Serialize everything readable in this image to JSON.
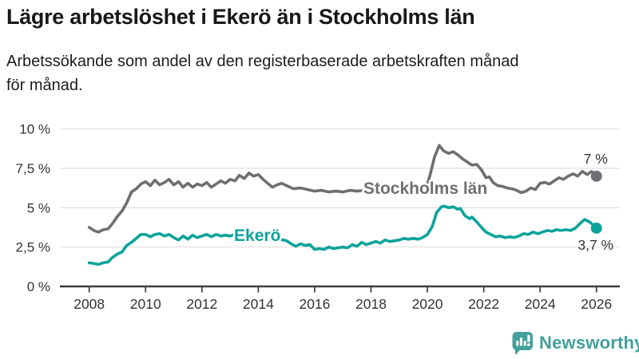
{
  "header": {
    "title": "Lägre arbetslöshet i Ekerö än i Stockholms län",
    "subtitle_lines": [
      "Arbetssökande som andel av den registerbaserade arbetskraften månad",
      "för månad."
    ]
  },
  "colors": {
    "series_stockholm": "#6e6f73",
    "series_ekero": "#0ca39a",
    "grid": "#e2e2e2",
    "axis": "#3b3b3b",
    "tick_label": "#333333",
    "value_label": "#333333",
    "brand_teal": "#43a09b"
  },
  "chart_data": {
    "type": "line",
    "title": "Lägre arbetslöshet i Ekerö än i Stockholms län",
    "xlabel": "",
    "ylabel": "Arbetssökande som andel av den registerbaserade arbetskraften",
    "x_tick_years": [
      2008,
      2010,
      2012,
      2014,
      2016,
      2018,
      2020,
      2022,
      2024,
      2026
    ],
    "y_ticks": [
      {
        "value": 0,
        "label": "0 %"
      },
      {
        "value": 2.5,
        "label": "2,5 %"
      },
      {
        "value": 5,
        "label": "5 %"
      },
      {
        "value": 7.5,
        "label": "7,5 %"
      },
      {
        "value": 10,
        "label": "10 %"
      }
    ],
    "ylim": [
      0,
      10
    ],
    "xlim": [
      2008,
      2026
    ],
    "grid": "horizontal",
    "legend_position": "inline",
    "series": [
      {
        "id": "stockholms-lan",
        "name": "Stockholms län",
        "color": "#6e6f73",
        "end_label": "7 %",
        "end_value": 7.0,
        "inline_label": {
          "text": "Stockholms län",
          "x": 2017.73,
          "y": 6.23
        },
        "points": [
          [
            2008.0,
            3.75
          ],
          [
            2008.17,
            3.55
          ],
          [
            2008.33,
            3.45
          ],
          [
            2008.5,
            3.6
          ],
          [
            2008.67,
            3.65
          ],
          [
            2008.83,
            4.0
          ],
          [
            2009.0,
            4.45
          ],
          [
            2009.17,
            4.8
          ],
          [
            2009.33,
            5.3
          ],
          [
            2009.5,
            6.0
          ],
          [
            2009.67,
            6.2
          ],
          [
            2009.83,
            6.5
          ],
          [
            2010.0,
            6.65
          ],
          [
            2010.17,
            6.4
          ],
          [
            2010.33,
            6.75
          ],
          [
            2010.5,
            6.45
          ],
          [
            2010.67,
            6.6
          ],
          [
            2010.83,
            6.8
          ],
          [
            2011.0,
            6.45
          ],
          [
            2011.17,
            6.65
          ],
          [
            2011.33,
            6.3
          ],
          [
            2011.5,
            6.55
          ],
          [
            2011.67,
            6.3
          ],
          [
            2011.83,
            6.5
          ],
          [
            2012.0,
            6.4
          ],
          [
            2012.17,
            6.6
          ],
          [
            2012.33,
            6.3
          ],
          [
            2012.5,
            6.5
          ],
          [
            2012.67,
            6.7
          ],
          [
            2012.83,
            6.55
          ],
          [
            2013.0,
            6.8
          ],
          [
            2013.17,
            6.7
          ],
          [
            2013.33,
            7.05
          ],
          [
            2013.5,
            6.85
          ],
          [
            2013.67,
            7.2
          ],
          [
            2013.83,
            7.0
          ],
          [
            2014.0,
            7.1
          ],
          [
            2014.17,
            6.8
          ],
          [
            2014.33,
            6.55
          ],
          [
            2014.5,
            6.3
          ],
          [
            2014.67,
            6.45
          ],
          [
            2014.83,
            6.55
          ],
          [
            2015.0,
            6.4
          ],
          [
            2015.25,
            6.2
          ],
          [
            2015.5,
            6.25
          ],
          [
            2015.75,
            6.15
          ],
          [
            2016.0,
            6.05
          ],
          [
            2016.25,
            6.1
          ],
          [
            2016.5,
            6.0
          ],
          [
            2016.75,
            6.05
          ],
          [
            2017.0,
            6.0
          ],
          [
            2017.25,
            6.1
          ],
          [
            2017.5,
            6.05
          ],
          [
            2017.75,
            6.1
          ],
          [
            2018.0,
            6.1
          ],
          [
            2018.25,
            6.15
          ],
          [
            2018.5,
            6.1
          ],
          [
            2018.75,
            6.15
          ],
          [
            2019.0,
            6.15
          ],
          [
            2019.25,
            6.2
          ],
          [
            2019.5,
            6.15
          ],
          [
            2019.75,
            6.25
          ],
          [
            2020.0,
            6.5
          ],
          [
            2020.1,
            7.1
          ],
          [
            2020.25,
            8.2
          ],
          [
            2020.42,
            8.95
          ],
          [
            2020.58,
            8.6
          ],
          [
            2020.75,
            8.45
          ],
          [
            2020.92,
            8.55
          ],
          [
            2021.08,
            8.35
          ],
          [
            2021.25,
            8.1
          ],
          [
            2021.42,
            7.9
          ],
          [
            2021.58,
            7.7
          ],
          [
            2021.75,
            7.75
          ],
          [
            2021.92,
            7.4
          ],
          [
            2022.08,
            6.9
          ],
          [
            2022.2,
            6.95
          ],
          [
            2022.33,
            6.6
          ],
          [
            2022.5,
            6.4
          ],
          [
            2022.67,
            6.35
          ],
          [
            2022.83,
            6.25
          ],
          [
            2023.0,
            6.2
          ],
          [
            2023.17,
            6.1
          ],
          [
            2023.33,
            5.95
          ],
          [
            2023.5,
            6.05
          ],
          [
            2023.67,
            6.25
          ],
          [
            2023.83,
            6.15
          ],
          [
            2024.0,
            6.55
          ],
          [
            2024.17,
            6.6
          ],
          [
            2024.33,
            6.5
          ],
          [
            2024.5,
            6.7
          ],
          [
            2024.67,
            6.9
          ],
          [
            2024.83,
            6.8
          ],
          [
            2025.0,
            7.0
          ],
          [
            2025.17,
            7.15
          ],
          [
            2025.33,
            7.0
          ],
          [
            2025.5,
            7.3
          ],
          [
            2025.67,
            7.1
          ],
          [
            2025.83,
            7.3
          ],
          [
            2026.0,
            7.0
          ]
        ]
      },
      {
        "id": "ekero",
        "name": "Ekerö",
        "color": "#0ca39a",
        "end_label": "3,7 %",
        "end_value": 3.7,
        "inline_label": {
          "text": "Ekerö",
          "x": 2013.14,
          "y": 3.25
        },
        "points": [
          [
            2008.0,
            1.5
          ],
          [
            2008.17,
            1.45
          ],
          [
            2008.33,
            1.4
          ],
          [
            2008.5,
            1.5
          ],
          [
            2008.67,
            1.55
          ],
          [
            2008.83,
            1.85
          ],
          [
            2009.0,
            2.05
          ],
          [
            2009.17,
            2.2
          ],
          [
            2009.33,
            2.6
          ],
          [
            2009.5,
            2.8
          ],
          [
            2009.67,
            3.05
          ],
          [
            2009.83,
            3.3
          ],
          [
            2010.0,
            3.3
          ],
          [
            2010.17,
            3.15
          ],
          [
            2010.33,
            3.3
          ],
          [
            2010.5,
            3.35
          ],
          [
            2010.67,
            3.2
          ],
          [
            2010.83,
            3.3
          ],
          [
            2011.0,
            3.1
          ],
          [
            2011.17,
            2.95
          ],
          [
            2011.33,
            3.2
          ],
          [
            2011.5,
            3.0
          ],
          [
            2011.67,
            3.25
          ],
          [
            2011.83,
            3.1
          ],
          [
            2012.0,
            3.2
          ],
          [
            2012.17,
            3.3
          ],
          [
            2012.33,
            3.15
          ],
          [
            2012.5,
            3.3
          ],
          [
            2012.67,
            3.2
          ],
          [
            2012.83,
            3.25
          ],
          [
            2013.0,
            3.2
          ],
          [
            2013.17,
            3.3
          ],
          [
            2013.33,
            3.25
          ],
          [
            2013.5,
            3.3
          ],
          [
            2013.67,
            3.25
          ],
          [
            2013.83,
            3.3
          ],
          [
            2014.0,
            3.25
          ],
          [
            2014.25,
            3.2
          ],
          [
            2014.5,
            3.1
          ],
          [
            2014.75,
            3.0
          ],
          [
            2015.0,
            2.9
          ],
          [
            2015.17,
            2.7
          ],
          [
            2015.33,
            2.55
          ],
          [
            2015.5,
            2.7
          ],
          [
            2015.67,
            2.6
          ],
          [
            2015.83,
            2.65
          ],
          [
            2016.0,
            2.35
          ],
          [
            2016.17,
            2.4
          ],
          [
            2016.33,
            2.35
          ],
          [
            2016.5,
            2.5
          ],
          [
            2016.67,
            2.4
          ],
          [
            2016.83,
            2.45
          ],
          [
            2017.0,
            2.5
          ],
          [
            2017.17,
            2.45
          ],
          [
            2017.33,
            2.65
          ],
          [
            2017.5,
            2.55
          ],
          [
            2017.67,
            2.8
          ],
          [
            2017.83,
            2.65
          ],
          [
            2018.0,
            2.75
          ],
          [
            2018.17,
            2.85
          ],
          [
            2018.33,
            2.75
          ],
          [
            2018.5,
            2.95
          ],
          [
            2018.67,
            2.85
          ],
          [
            2018.83,
            2.9
          ],
          [
            2019.0,
            2.95
          ],
          [
            2019.17,
            3.05
          ],
          [
            2019.33,
            3.0
          ],
          [
            2019.5,
            3.05
          ],
          [
            2019.67,
            3.0
          ],
          [
            2019.83,
            3.1
          ],
          [
            2020.0,
            3.3
          ],
          [
            2020.17,
            3.8
          ],
          [
            2020.33,
            4.7
          ],
          [
            2020.5,
            5.05
          ],
          [
            2020.58,
            5.1
          ],
          [
            2020.75,
            5.0
          ],
          [
            2020.92,
            5.05
          ],
          [
            2021.08,
            4.9
          ],
          [
            2021.17,
            4.95
          ],
          [
            2021.33,
            4.5
          ],
          [
            2021.5,
            4.3
          ],
          [
            2021.58,
            4.4
          ],
          [
            2021.75,
            4.1
          ],
          [
            2021.92,
            3.75
          ],
          [
            2022.08,
            3.45
          ],
          [
            2022.25,
            3.3
          ],
          [
            2022.42,
            3.15
          ],
          [
            2022.58,
            3.2
          ],
          [
            2022.75,
            3.1
          ],
          [
            2022.92,
            3.15
          ],
          [
            2023.08,
            3.1
          ],
          [
            2023.25,
            3.2
          ],
          [
            2023.42,
            3.35
          ],
          [
            2023.58,
            3.3
          ],
          [
            2023.75,
            3.45
          ],
          [
            2023.92,
            3.35
          ],
          [
            2024.08,
            3.45
          ],
          [
            2024.25,
            3.55
          ],
          [
            2024.42,
            3.5
          ],
          [
            2024.58,
            3.6
          ],
          [
            2024.75,
            3.55
          ],
          [
            2024.92,
            3.6
          ],
          [
            2025.08,
            3.55
          ],
          [
            2025.25,
            3.7
          ],
          [
            2025.42,
            4.0
          ],
          [
            2025.58,
            4.25
          ],
          [
            2025.75,
            4.1
          ],
          [
            2025.92,
            3.85
          ],
          [
            2026.0,
            3.7
          ]
        ]
      }
    ]
  },
  "footer": {
    "brand": "Newsworthy",
    "brand_icon": "newsworthy-chart-bubble-icon"
  }
}
